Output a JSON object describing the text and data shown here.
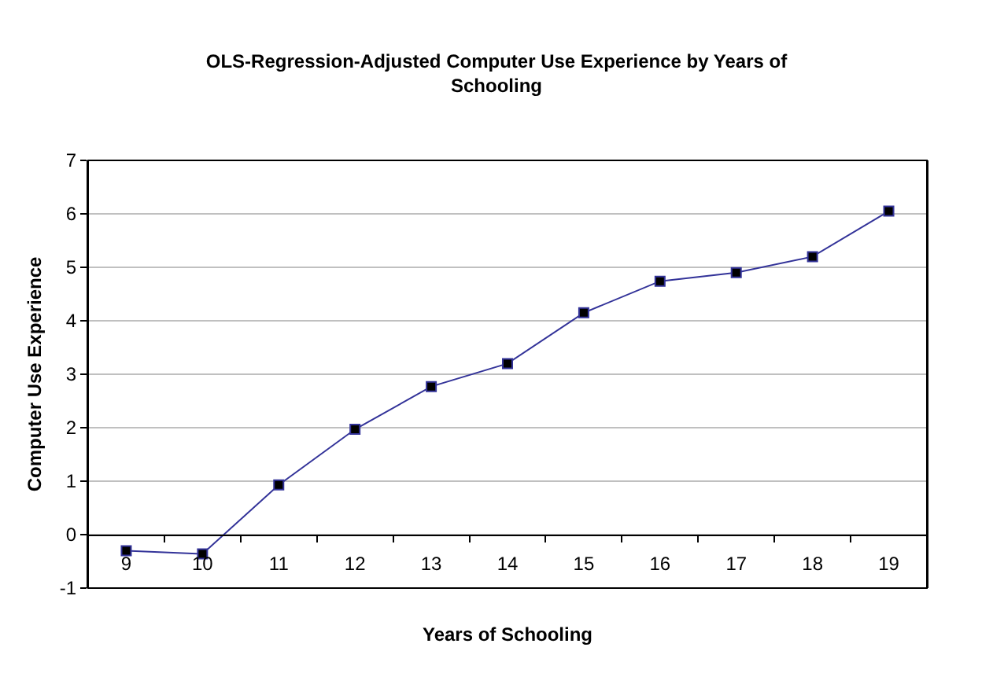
{
  "chart_data": {
    "type": "line",
    "title": "OLS-Regression-Adjusted Computer Use Experience by Years of Schooling",
    "xlabel": "Years of Schooling",
    "ylabel": "Computer Use Experience",
    "categories": [
      "9",
      "10",
      "11",
      "12",
      "13",
      "14",
      "15",
      "16",
      "17",
      "18",
      "19"
    ],
    "series": [
      {
        "color": "#333399",
        "values": [
          -0.3,
          -0.36,
          0.93,
          1.97,
          2.77,
          3.2,
          4.15,
          4.74,
          4.9,
          5.2,
          6.05
        ]
      }
    ],
    "ylim": [
      -1,
      7
    ],
    "yticks": [
      -1,
      0,
      1,
      2,
      3,
      4,
      5,
      6,
      7
    ],
    "grid": "y",
    "marker": "square",
    "line_style": "solid"
  }
}
